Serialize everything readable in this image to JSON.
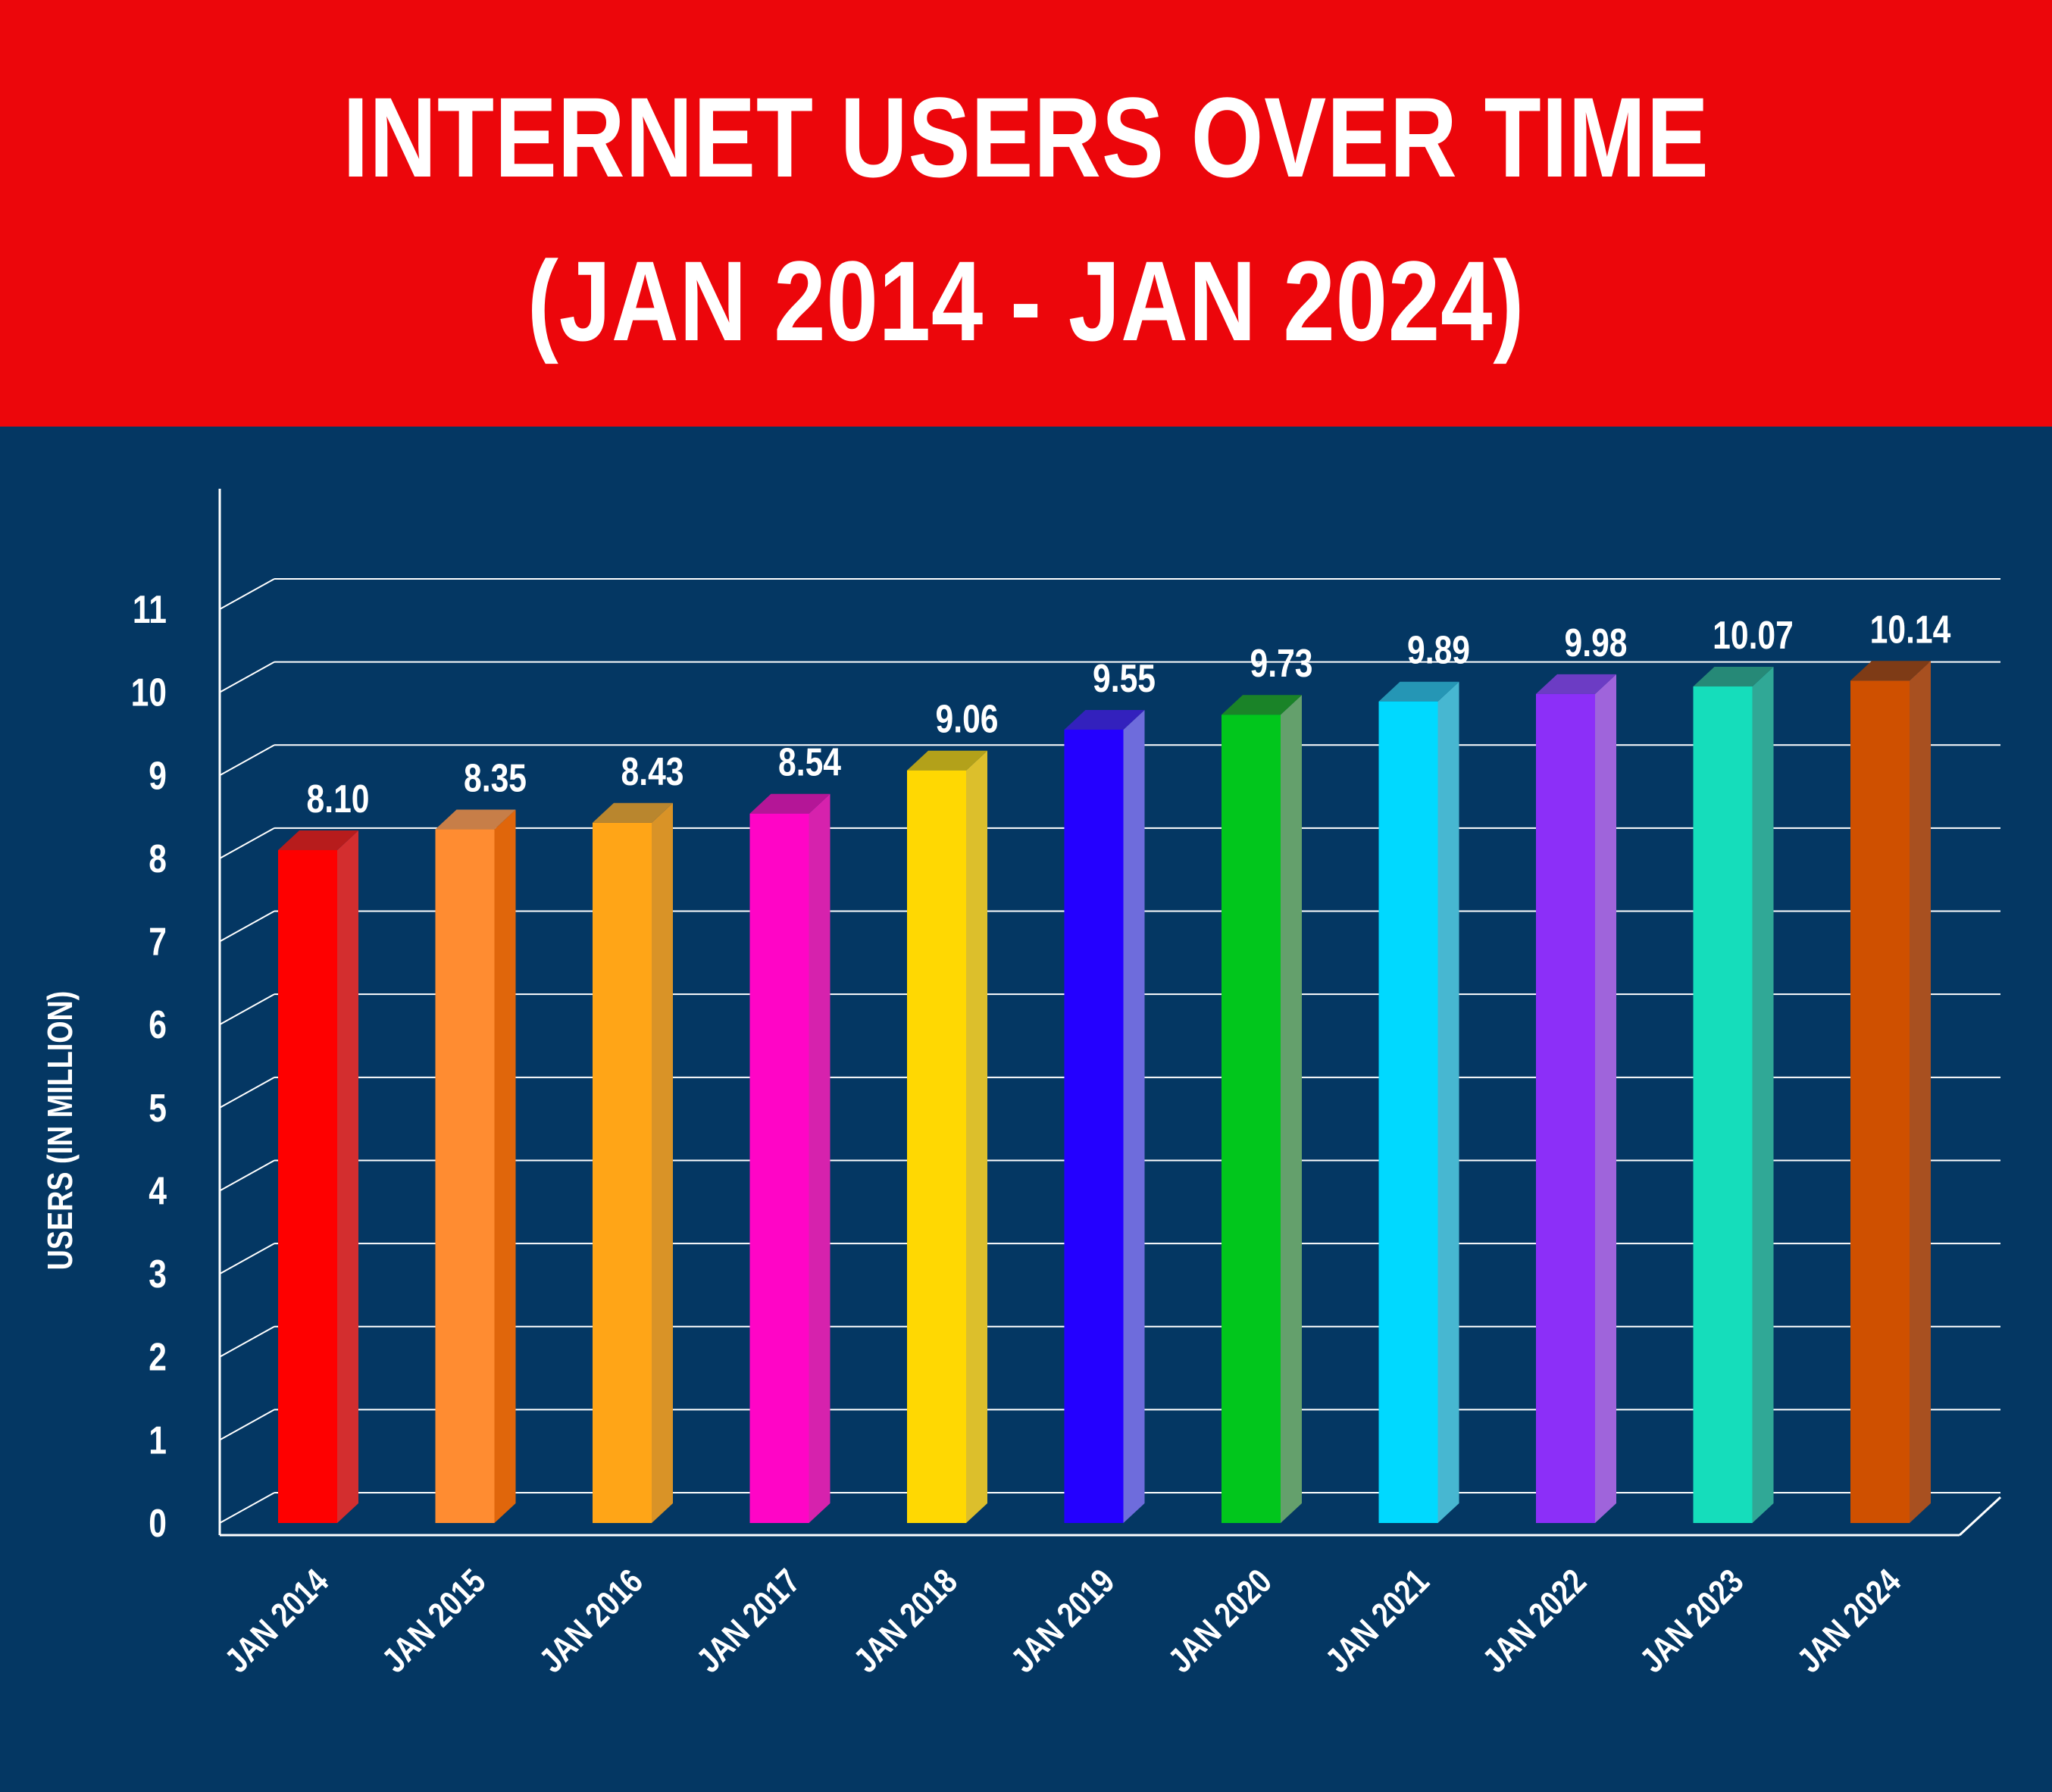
{
  "colors": {
    "background": "#043763",
    "banner": "#ec060b",
    "text": "#ffffff",
    "gridline": "#ffffff"
  },
  "title_lines": [
    "INTERNET USERS OVER TIME",
    "(JAN 2014 - JAN 2024)"
  ],
  "chart_data": {
    "type": "bar",
    "style": "3d",
    "title": "INTERNET USERS OVER TIME (JAN 2014 - JAN 2024)",
    "xlabel": "",
    "ylabel": "USERS (IN MILLION)",
    "ylim": [
      0,
      11
    ],
    "grid": true,
    "legend": "none",
    "y_ticks": [
      "0",
      "1",
      "2",
      "3",
      "4",
      "5",
      "6",
      "7",
      "8",
      "9",
      "10",
      "11"
    ],
    "categories": [
      "JAN 2014",
      "JAN 2015",
      "JAN 2016",
      "JAN 2017",
      "JAN 2018",
      "JAN 2019",
      "JAN 2020",
      "JAN 2021",
      "JAN 2022",
      "JAN 2023",
      "JAN 2024"
    ],
    "values": [
      8.1,
      8.35,
      8.43,
      8.54,
      9.06,
      9.55,
      9.73,
      9.89,
      9.98,
      10.07,
      10.14
    ],
    "value_labels": [
      "8.10",
      "8.35",
      "8.43",
      "8.54",
      "9.06",
      "9.55",
      "9.73",
      "9.89",
      "9.98",
      "10.07",
      "10.14"
    ],
    "bar_colors": [
      {
        "front": "#fe0000",
        "side": "#d32e2f",
        "top": "#b71c1c"
      },
      {
        "front": "#ff8c31",
        "side": "#e0660b",
        "top": "#c77e48"
      },
      {
        "front": "#ffa517",
        "side": "#d99327",
        "top": "#b9862e"
      },
      {
        "front": "#ff05c6",
        "side": "#d622ad",
        "top": "#b41697"
      },
      {
        "front": "#ffd802",
        "side": "#dcbf2c",
        "top": "#b3a11a"
      },
      {
        "front": "#2400ff",
        "side": "#6e6cdc",
        "top": "#3321bd"
      },
      {
        "front": "#01c61c",
        "side": "#64a06c",
        "top": "#1a8328"
      },
      {
        "front": "#00d9ff",
        "side": "#47b7d1",
        "top": "#2596b5"
      },
      {
        "front": "#8c2ff8",
        "side": "#9f64db",
        "top": "#6c3cc4"
      },
      {
        "front": "#15ddbb",
        "side": "#30a896",
        "top": "#268977"
      },
      {
        "front": "#cf5000",
        "side": "#a85020",
        "top": "#7e3b16"
      }
    ]
  }
}
